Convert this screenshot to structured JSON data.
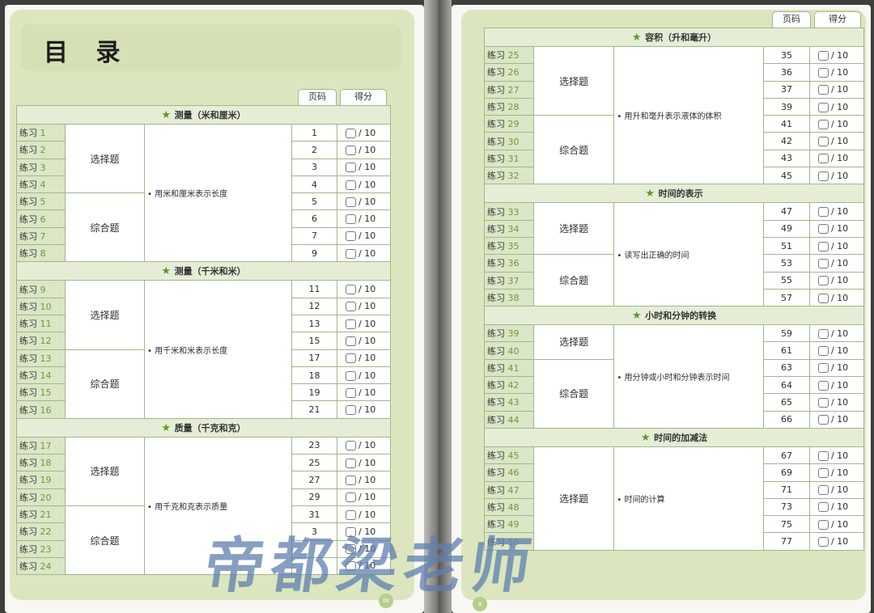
{
  "left": {
    "title": "目 录",
    "header": {
      "page": "页码",
      "score": "得分"
    },
    "page_number": "ix",
    "sections": [
      {
        "title": "测量（米和厘米）",
        "desc": "用米和厘米表示长度",
        "groups": [
          {
            "type": "选择题",
            "count": 4
          },
          {
            "type": "综合题",
            "count": 4
          }
        ],
        "rows": [
          [
            "练习",
            "1",
            "1"
          ],
          [
            "练习",
            "2",
            "2"
          ],
          [
            "练习",
            "3",
            "3"
          ],
          [
            "练习",
            "4",
            "4"
          ],
          [
            "练习",
            "5",
            "5"
          ],
          [
            "练习",
            "6",
            "6"
          ],
          [
            "练习",
            "7",
            "7"
          ],
          [
            "练习",
            "8",
            "9"
          ]
        ]
      },
      {
        "title": "测量（千米和米）",
        "desc": "用千米和米表示长度",
        "groups": [
          {
            "type": "选择题",
            "count": 4
          },
          {
            "type": "综合题",
            "count": 4
          }
        ],
        "rows": [
          [
            "练习",
            "9",
            "11"
          ],
          [
            "练习",
            "10",
            "12"
          ],
          [
            "练习",
            "11",
            "13"
          ],
          [
            "练习",
            "12",
            "15"
          ],
          [
            "练习",
            "13",
            "17"
          ],
          [
            "练习",
            "14",
            "18"
          ],
          [
            "练习",
            "15",
            "19"
          ],
          [
            "练习",
            "16",
            "21"
          ]
        ]
      },
      {
        "title": "质量（千克和克）",
        "desc": "用千克和克表示质量",
        "groups": [
          {
            "type": "选择题",
            "count": 4
          },
          {
            "type": "综合题",
            "count": 4
          }
        ],
        "rows": [
          [
            "练习",
            "17",
            "23"
          ],
          [
            "练习",
            "18",
            "25"
          ],
          [
            "练习",
            "19",
            "27"
          ],
          [
            "练习",
            "20",
            "29"
          ],
          [
            "练习",
            "21",
            "31"
          ],
          [
            "练习",
            "22",
            "3"
          ],
          [
            "练习",
            "23",
            ""
          ],
          [
            "练习",
            "24",
            ""
          ]
        ]
      }
    ]
  },
  "right": {
    "header": {
      "page": "页码",
      "score": "得分"
    },
    "page_number": "x",
    "sections": [
      {
        "title": "容积（升和毫升）",
        "desc": "用升和毫升表示液体的体积",
        "groups": [
          {
            "type": "选择题",
            "count": 4
          },
          {
            "type": "综合题",
            "count": 4
          }
        ],
        "rows": [
          [
            "练习",
            "25",
            "35"
          ],
          [
            "练习",
            "26",
            "36"
          ],
          [
            "练习",
            "27",
            "37"
          ],
          [
            "练习",
            "28",
            "39"
          ],
          [
            "练习",
            "29",
            "41"
          ],
          [
            "练习",
            "30",
            "42"
          ],
          [
            "练习",
            "31",
            "43"
          ],
          [
            "练习",
            "32",
            "45"
          ]
        ]
      },
      {
        "title": "时间的表示",
        "desc": "读写出正确的时间",
        "groups": [
          {
            "type": "选择题",
            "count": 3
          },
          {
            "type": "综合题",
            "count": 3
          }
        ],
        "rows": [
          [
            "练习",
            "33",
            "47"
          ],
          [
            "练习",
            "34",
            "49"
          ],
          [
            "练习",
            "35",
            "51"
          ],
          [
            "练习",
            "36",
            "53"
          ],
          [
            "练习",
            "37",
            "55"
          ],
          [
            "练习",
            "38",
            "57"
          ]
        ]
      },
      {
        "title": "小时和分钟的转换",
        "desc": "用分钟或小时和分钟表示时间",
        "groups": [
          {
            "type": "选择题",
            "count": 2
          },
          {
            "type": "综合题",
            "count": 4
          }
        ],
        "rows": [
          [
            "练习",
            "39",
            "59"
          ],
          [
            "练习",
            "40",
            "61"
          ],
          [
            "练习",
            "41",
            "63"
          ],
          [
            "练习",
            "42",
            "64"
          ],
          [
            "练习",
            "43",
            "65"
          ],
          [
            "练习",
            "44",
            "66"
          ]
        ]
      },
      {
        "title": "时间的加减法",
        "desc": "时间的计算",
        "groups": [
          {
            "type": "选择题",
            "count": 6
          }
        ],
        "rows": [
          [
            "练习",
            "45",
            "67"
          ],
          [
            "练习",
            "46",
            "69"
          ],
          [
            "练习",
            "47",
            "71"
          ],
          [
            "练习",
            "48",
            "73"
          ],
          [
            "练习",
            "49",
            "75"
          ],
          [
            "练习",
            "50",
            "77"
          ]
        ]
      }
    ]
  },
  "score_suffix": "/ 10",
  "watermark": "帝都梁老师"
}
